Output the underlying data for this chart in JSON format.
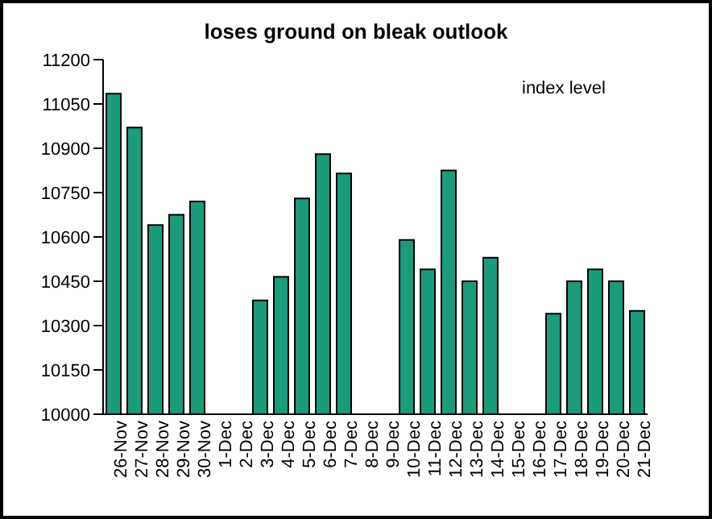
{
  "chart_data": {
    "type": "bar",
    "title": "loses ground on bleak outlook",
    "categories": [
      "26-Nov",
      "27-Nov",
      "28-Nov",
      "29-Nov",
      "30-Nov",
      "1-Dec",
      "2-Dec",
      "3-Dec",
      "4-Dec",
      "5-Dec",
      "6-Dec",
      "7-Dec",
      "8-Dec",
      "9-Dec",
      "10-Dec",
      "11-Dec",
      "12-Dec",
      "13-Dec",
      "14-Dec",
      "15-Dec",
      "16-Dec",
      "17-Dec",
      "18-Dec",
      "19-Dec",
      "20-Dec",
      "21-Dec"
    ],
    "values": [
      11085,
      10970,
      10640,
      10675,
      10720,
      null,
      null,
      10385,
      10465,
      10730,
      10880,
      10815,
      null,
      null,
      10590,
      10490,
      10825,
      10450,
      10530,
      null,
      null,
      10340,
      10450,
      10490,
      10450,
      10350
    ],
    "color": "#1a9b7a",
    "ylim": [
      10000,
      11200
    ],
    "yticks": [
      10000,
      10150,
      10300,
      10450,
      10600,
      10750,
      10900,
      11050,
      11200
    ],
    "annotations": [
      "index level"
    ],
    "grid": false,
    "legend": false
  }
}
